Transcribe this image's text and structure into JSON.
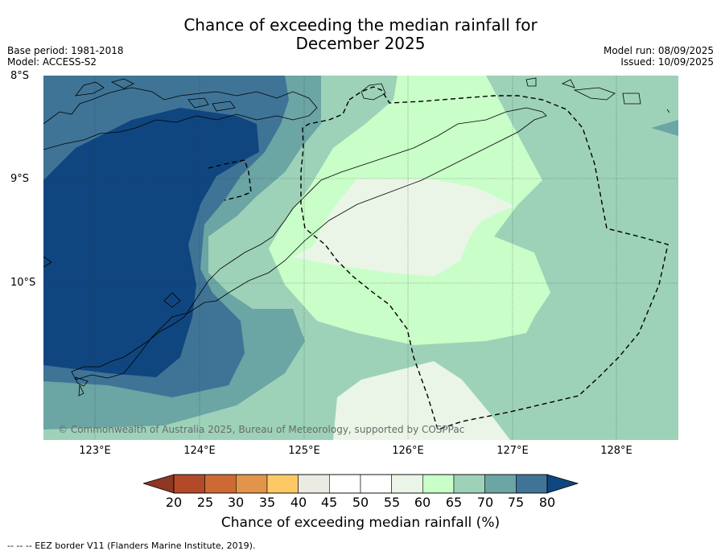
{
  "title_line1": "Chance of exceeding the median rainfall for",
  "title_line2": "December 2025",
  "base_period": "Base period: 1981-2018",
  "model": "Model: ACCESS-S2",
  "model_run": "Model run: 08/09/2025",
  "issued": "Issued: 10/09/2025",
  "lat_labels": [
    "8°S",
    "9°S",
    "10°S"
  ],
  "lon_labels": [
    "123°E",
    "124°E",
    "125°E",
    "126°E",
    "127°E",
    "128°E"
  ],
  "copyright": "© Commonwealth of Australia 2025, Bureau of Meteorology, supported by COSPPac",
  "colorbar": {
    "ticks": [
      "20",
      "25",
      "30",
      "35",
      "40",
      "45",
      "50",
      "55",
      "60",
      "65",
      "70",
      "75",
      "80"
    ],
    "colors": [
      "#b24a2a",
      "#cd6a33",
      "#e3944b",
      "#fcc964",
      "#ebeae3",
      "#ffffff",
      "#ffffff",
      "#eaf5e8",
      "#c9fec8",
      "#9dd2b9",
      "#6ba5a4",
      "#3f7496"
    ],
    "under_color": "#8e3722",
    "over_color": "#10467f",
    "label": "Chance of exceeding median rainfall (%)"
  },
  "footnote": "-- -- -- EEZ border V11 (Flanders Marine Institute, 2019)."
}
